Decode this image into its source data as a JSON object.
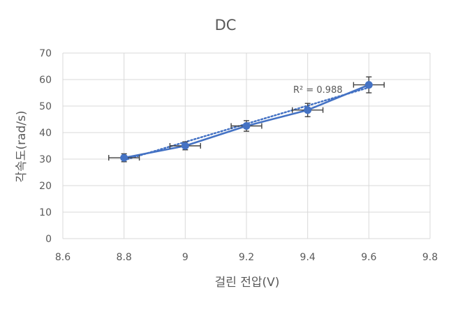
{
  "chart_data": {
    "type": "line",
    "title": "DC",
    "xlabel": "걸린 전압(V)",
    "ylabel": "각속도(rad/s)",
    "xlim": [
      8.6,
      9.8
    ],
    "ylim": [
      0,
      70
    ],
    "xticks": [
      "8.6",
      "8.8",
      "9",
      "9.2",
      "9.4",
      "9.6",
      "9.8"
    ],
    "yticks": [
      "0",
      "10",
      "20",
      "30",
      "40",
      "50",
      "60",
      "70"
    ],
    "grid": true,
    "series": [
      {
        "x": [
          8.8,
          9.0,
          9.2,
          9.4,
          9.6
        ],
        "y": [
          30.5,
          35.0,
          42.5,
          48.5,
          58.0
        ],
        "xerr": [
          0.05,
          0.05,
          0.05,
          0.05,
          0.05
        ],
        "yerr": [
          1.5,
          1.5,
          2.0,
          2.5,
          3.0
        ],
        "color": "#4472C4"
      }
    ],
    "trendline": {
      "type": "linear",
      "style": "dotted",
      "color": "#4472C4",
      "x_range": [
        8.8,
        9.6
      ],
      "y_range": [
        29.6,
        57.0
      ],
      "r2_label": "R² = 0.988"
    }
  }
}
